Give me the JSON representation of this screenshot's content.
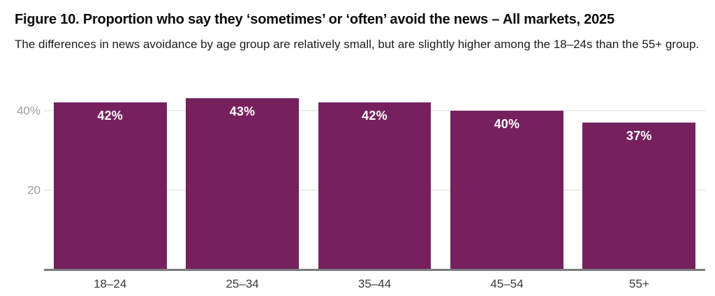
{
  "figure": {
    "title": "Figure 10. Proportion who say they ‘sometimes’ or ‘often’ avoid the news – All markets, 2025",
    "subtitle": "The differences in news avoidance by age group are relatively small, but are slightly higher among the 18–24s than the 55+ group."
  },
  "chart_data": {
    "type": "bar",
    "title": "Proportion who say they ‘sometimes’ or ‘often’ avoid the news – All markets, 2025",
    "categories": [
      "18–24",
      "25–34",
      "35–44",
      "45–54",
      "55+"
    ],
    "values": [
      42,
      43,
      42,
      40,
      37
    ],
    "value_labels": [
      "42%",
      "43%",
      "42%",
      "40%",
      "37%"
    ],
    "xlabel": "",
    "ylabel": "",
    "ylim": [
      0,
      45
    ],
    "yticks": [
      {
        "value": 20,
        "label": "20"
      },
      {
        "value": 40,
        "label": "40%"
      }
    ],
    "grid": "horizontal",
    "legend": "none",
    "colors": {
      "bar": "#76215E",
      "bar_label": "#ffffff",
      "gridline": "#ededed",
      "axis_line": "#7c7c7c",
      "y_tick_label": "#9c9c9c",
      "category_label": "#3a3a3a"
    }
  }
}
